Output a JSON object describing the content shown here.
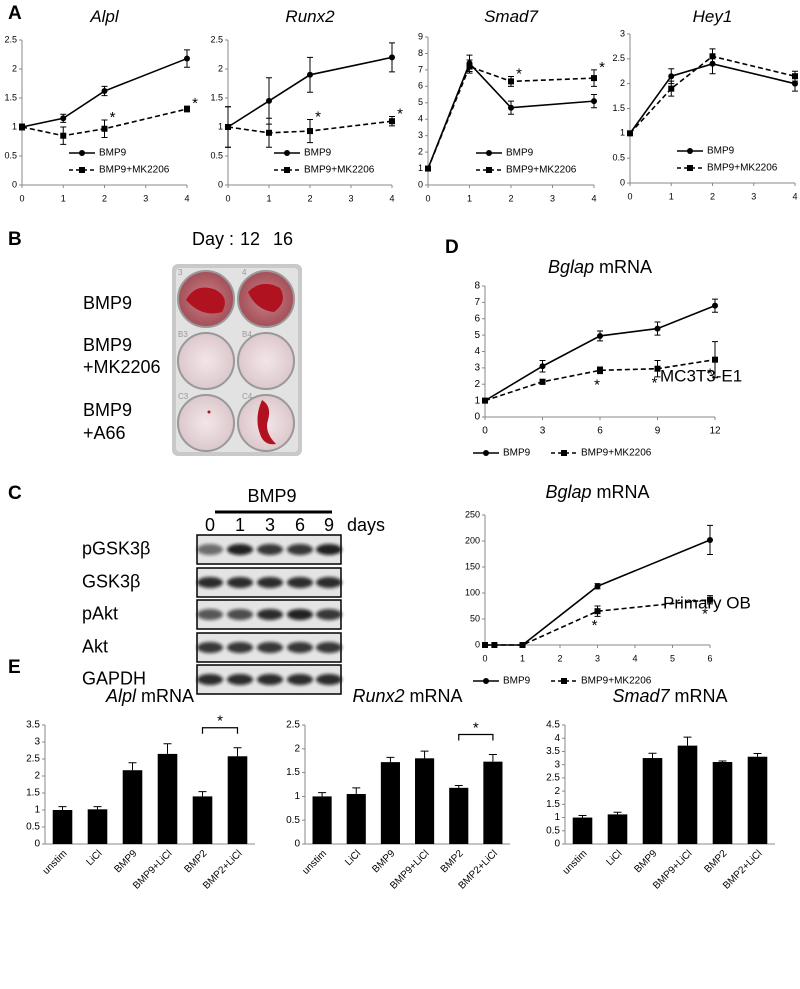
{
  "panel_labels": {
    "a": "A",
    "b": "B",
    "c": "C",
    "d": "D",
    "e": "E"
  },
  "chart_data": [
    {
      "type": "line",
      "title": "Alpl",
      "x": [
        0,
        1,
        2,
        4
      ],
      "xlim": [
        0,
        4
      ],
      "xticks": [
        0,
        1,
        2,
        3,
        4
      ],
      "ylim": [
        0,
        2.5
      ],
      "yticks": [
        0,
        0.5,
        1,
        1.5,
        2,
        2.5
      ],
      "legend": "lower right",
      "series": [
        {
          "name": "BMP9",
          "color": "#000000",
          "marker": "circle",
          "line_style": "solid",
          "values": [
            1,
            1.15,
            1.62,
            2.18
          ],
          "errors": [
            0.05,
            0.07,
            0.08,
            0.15
          ]
        },
        {
          "name": "BMP9+MK2206",
          "color": "#000000",
          "marker": "square",
          "line_style": "dashed",
          "values": [
            1,
            0.85,
            0.97,
            1.31
          ],
          "errors": [
            0.05,
            0.15,
            0.15,
            0.05
          ]
        }
      ],
      "annotations": [
        {
          "text": "*",
          "series": "BMP9+MK2206",
          "x": 2
        },
        {
          "text": "*",
          "series": "BMP9+MK2206",
          "x": 4
        }
      ]
    },
    {
      "type": "line",
      "title": "Runx2",
      "x": [
        0,
        1,
        2,
        4
      ],
      "xlim": [
        0,
        4
      ],
      "xticks": [
        0,
        1,
        2,
        3,
        4
      ],
      "ylim": [
        0,
        2.5
      ],
      "yticks": [
        0,
        0.5,
        1,
        1.5,
        2,
        2.5
      ],
      "legend": "lower right",
      "series": [
        {
          "name": "BMP9",
          "color": "#000000",
          "marker": "circle",
          "line_style": "solid",
          "values": [
            1,
            1.45,
            1.9,
            2.2
          ],
          "errors": [
            0.35,
            0.4,
            0.3,
            0.25
          ]
        },
        {
          "name": "BMP9+MK2206",
          "color": "#000000",
          "marker": "square",
          "line_style": "dashed",
          "values": [
            1,
            0.9,
            0.93,
            1.1
          ],
          "errors": [
            0.35,
            0.25,
            0.2,
            0.08
          ]
        }
      ],
      "annotations": [
        {
          "text": "*",
          "series": "BMP9+MK2206",
          "x": 2
        },
        {
          "text": "*",
          "series": "BMP9+MK2206",
          "x": 4
        }
      ]
    },
    {
      "type": "line",
      "title": "Smad7",
      "x": [
        0,
        1,
        2,
        4
      ],
      "xlim": [
        0,
        4
      ],
      "xticks": [
        0,
        1,
        2,
        3,
        4
      ],
      "ylim": [
        0,
        9
      ],
      "yticks": [
        0,
        1,
        2,
        3,
        4,
        5,
        6,
        7,
        8,
        9
      ],
      "legend": "lower right",
      "series": [
        {
          "name": "BMP9",
          "color": "#000000",
          "marker": "circle",
          "line_style": "solid",
          "values": [
            1,
            7.4,
            4.7,
            5.1
          ],
          "errors": [
            0.1,
            0.5,
            0.4,
            0.4
          ]
        },
        {
          "name": "BMP9+MK2206",
          "color": "#000000",
          "marker": "square",
          "line_style": "dashed",
          "values": [
            1,
            7.2,
            6.3,
            6.5
          ],
          "errors": [
            0.1,
            0.4,
            0.3,
            0.5
          ]
        }
      ],
      "annotations": [
        {
          "text": "*",
          "series": "BMP9+MK2206",
          "x": 2
        },
        {
          "text": "*",
          "series": "BMP9+MK2206",
          "x": 4
        }
      ]
    },
    {
      "type": "line",
      "title": "Hey1",
      "x": [
        0,
        1,
        2,
        4
      ],
      "xlim": [
        0,
        4
      ],
      "xticks": [
        0,
        1,
        2,
        3,
        4
      ],
      "ylim": [
        0,
        3
      ],
      "yticks": [
        0,
        0.5,
        1,
        1.5,
        2,
        2.5,
        3
      ],
      "legend": "lower right",
      "series": [
        {
          "name": "BMP9",
          "color": "#000000",
          "marker": "circle",
          "line_style": "solid",
          "values": [
            1,
            2.15,
            2.4,
            2.0
          ],
          "errors": [
            0.02,
            0.15,
            0.2,
            0.15
          ]
        },
        {
          "name": "BMP9+MK2206",
          "color": "#000000",
          "marker": "square",
          "line_style": "dashed",
          "values": [
            1,
            1.9,
            2.55,
            2.15
          ],
          "errors": [
            0.02,
            0.15,
            0.15,
            0.1
          ]
        }
      ],
      "annotations": []
    },
    {
      "type": "line",
      "title": "Bglap",
      "title_suffix": "mRNA",
      "note": "MC3T3-E1",
      "x": [
        0,
        3,
        6,
        9,
        12
      ],
      "xlim": [
        0,
        12
      ],
      "xticks": [
        0,
        3,
        6,
        9,
        12
      ],
      "ylim": [
        0,
        8
      ],
      "yticks": [
        0,
        1,
        2,
        3,
        4,
        5,
        6,
        7,
        8
      ],
      "legend": "below",
      "series": [
        {
          "name": "BMP9",
          "color": "#000000",
          "marker": "circle",
          "line_style": "solid",
          "values": [
            1,
            3.1,
            4.95,
            5.4,
            6.8
          ],
          "errors": [
            0.1,
            0.35,
            0.3,
            0.4,
            0.4
          ]
        },
        {
          "name": "BMP9+MK2206",
          "color": "#000000",
          "marker": "square",
          "line_style": "dashed",
          "values": [
            1,
            2.15,
            2.85,
            2.95,
            3.5
          ],
          "errors": [
            0.1,
            0.15,
            0.2,
            0.5,
            1.1
          ]
        }
      ],
      "annotations": [
        {
          "text": "*",
          "series": "BMP9+MK2206",
          "x": 6
        },
        {
          "text": "*",
          "series": "BMP9+MK2206",
          "x": 9
        },
        {
          "text": "*",
          "series": "BMP9+MK2206",
          "x": 12
        }
      ]
    },
    {
      "type": "line",
      "title": "Bglap",
      "title_suffix": "mRNA",
      "note": "Primary OB",
      "x": [
        0,
        0.25,
        1,
        3,
        6
      ],
      "xlim": [
        0,
        6
      ],
      "xticks": [
        0,
        1,
        2,
        3,
        4,
        5,
        6
      ],
      "ylim": [
        0,
        250
      ],
      "yticks": [
        0,
        50,
        100,
        150,
        200,
        250
      ],
      "legend": "below",
      "series": [
        {
          "name": "BMP9",
          "color": "#000000",
          "marker": "circle",
          "line_style": "solid",
          "values": [
            0,
            0,
            0,
            113,
            202
          ],
          "errors": [
            0,
            0,
            0,
            5,
            28
          ]
        },
        {
          "name": "BMP9+MK2206",
          "color": "#000000",
          "marker": "square",
          "line_style": "dashed",
          "values": [
            0,
            0,
            0,
            65,
            87
          ],
          "errors": [
            0,
            0,
            0,
            10,
            8
          ]
        }
      ],
      "annotations": [
        {
          "text": "*",
          "series": "BMP9+MK2206",
          "x": 3
        },
        {
          "text": "*",
          "series": "BMP9+MK2206",
          "x": 6
        }
      ]
    },
    {
      "type": "bar",
      "title": "Alpl",
      "title_suffix": "mRNA",
      "categories": [
        "unstim",
        "LiCl",
        "BMP9",
        "BMP9+LiCl",
        "BMP2",
        "BMP2+LiCl"
      ],
      "values": [
        1.0,
        1.02,
        2.17,
        2.65,
        1.4,
        2.58
      ],
      "errors": [
        0.1,
        0.08,
        0.22,
        0.3,
        0.14,
        0.25
      ],
      "color": "#000000",
      "ylim": [
        0,
        3.5
      ],
      "yticks": [
        0,
        0.5,
        1,
        1.5,
        2,
        2.5,
        3,
        3.5
      ],
      "significance": [
        {
          "from": "BMP2",
          "to": "BMP2+LiCl",
          "label": "*"
        }
      ]
    },
    {
      "type": "bar",
      "title": "Runx2",
      "title_suffix": "mRNA",
      "categories": [
        "unstim",
        "LiCl",
        "BMP9",
        "BMP9+LiCl",
        "BMP2",
        "BMP2+LiCl"
      ],
      "values": [
        1.0,
        1.05,
        1.72,
        1.8,
        1.18,
        1.73
      ],
      "errors": [
        0.08,
        0.13,
        0.1,
        0.15,
        0.05,
        0.15
      ],
      "color": "#000000",
      "ylim": [
        0,
        2.5
      ],
      "yticks": [
        0,
        0.5,
        1,
        1.5,
        2,
        2.5
      ],
      "significance": [
        {
          "from": "BMP2",
          "to": "BMP2+LiCl",
          "label": "*"
        }
      ]
    },
    {
      "type": "bar",
      "title": "Smad7",
      "title_suffix": "mRNA",
      "categories": [
        "unstim",
        "LiCl",
        "BMP9",
        "BMP9+LiCl",
        "BMP2",
        "BMP2+LiCl"
      ],
      "values": [
        1.0,
        1.12,
        3.25,
        3.72,
        3.1,
        3.3
      ],
      "errors": [
        0.08,
        0.08,
        0.18,
        0.32,
        0.04,
        0.12
      ],
      "color": "#000000",
      "ylim": [
        0,
        4.5
      ],
      "yticks": [
        0,
        0.5,
        1,
        1.5,
        2,
        2.5,
        3,
        3.5,
        4,
        4.5
      ],
      "significance": []
    }
  ],
  "plate": {
    "day_label": "Day :",
    "days": [
      "12",
      "16"
    ],
    "rows": [
      [
        "BMP9"
      ],
      [
        "BMP9",
        "+MK2206"
      ],
      [
        "BMP9",
        "+A66"
      ]
    ],
    "well_labels": [
      [
        "3",
        "4"
      ],
      [
        "B3",
        "B4"
      ],
      [
        "C3",
        "C4"
      ]
    ]
  },
  "blot": {
    "treatment": "BMP9",
    "lanes": [
      "0",
      "1",
      "3",
      "6",
      "9"
    ],
    "unit": "days",
    "rows": [
      "pGSK3β",
      "GSK3β",
      "pAkt",
      "Akt",
      "GAPDH"
    ]
  }
}
